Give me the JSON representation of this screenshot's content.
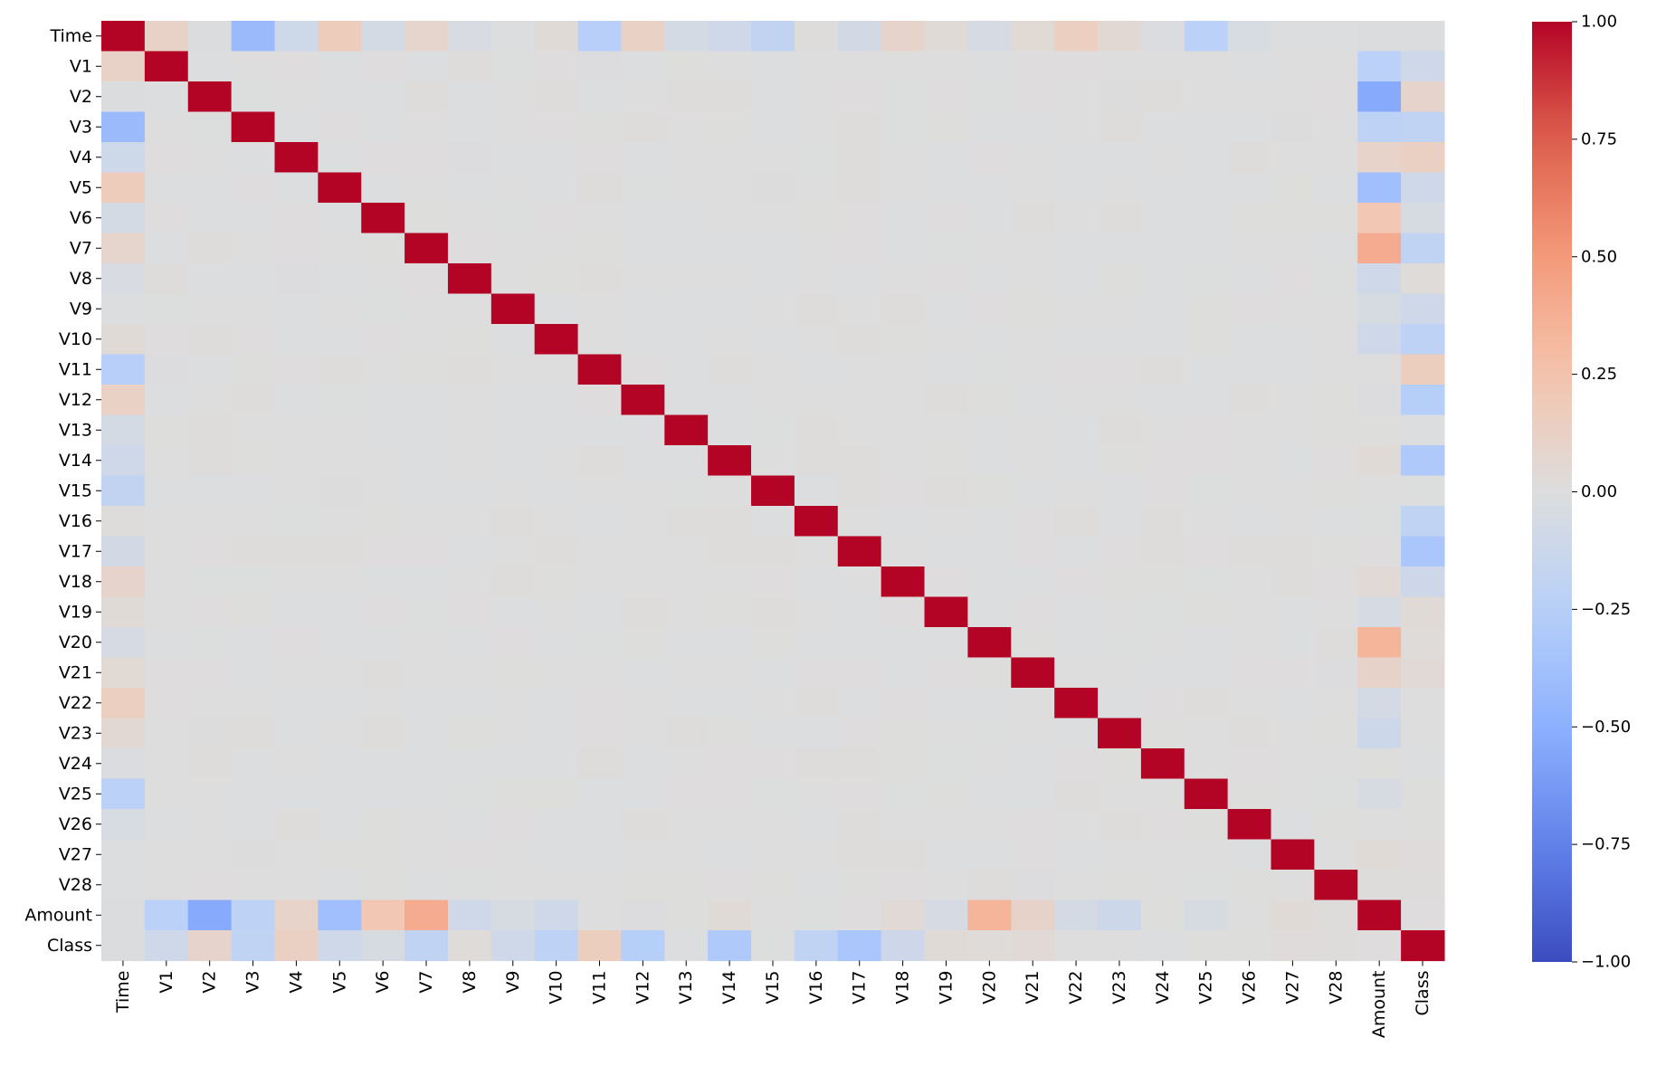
{
  "chart_data": {
    "type": "heatmap",
    "title": "",
    "xlabel": "",
    "ylabel": "",
    "colormap": "coolwarm",
    "vmin": -1,
    "vmax": 1,
    "labels": [
      "Time",
      "V1",
      "V2",
      "V3",
      "V4",
      "V5",
      "V6",
      "V7",
      "V8",
      "V9",
      "V10",
      "V11",
      "V12",
      "V13",
      "V14",
      "V15",
      "V16",
      "V17",
      "V18",
      "V19",
      "V20",
      "V21",
      "V22",
      "V23",
      "V24",
      "V25",
      "V26",
      "V27",
      "V28",
      "Amount",
      "Class"
    ],
    "time_correlations": [
      1,
      0.117,
      -0.011,
      -0.42,
      -0.105,
      0.173,
      -0.063,
      0.085,
      -0.037,
      -0.009,
      0.031,
      -0.248,
      0.124,
      -0.066,
      -0.099,
      -0.183,
      0.012,
      -0.073,
      0.09,
      0.029,
      -0.051,
      0.045,
      0.144,
      0.051,
      -0.016,
      -0.233,
      -0.041,
      -0.005,
      -0.009,
      -0.011,
      -0.012
    ],
    "amount_correlations": [
      -0.011,
      -0.228,
      -0.531,
      -0.211,
      0.099,
      -0.386,
      0.216,
      0.397,
      -0.103,
      -0.044,
      -0.102,
      0.0,
      -0.01,
      0.005,
      0.034,
      -0.003,
      -0.004,
      0.007,
      0.036,
      -0.056,
      0.34,
      0.106,
      -0.065,
      -0.113,
      0.005,
      -0.048,
      -0.003,
      0.029,
      0.01,
      1,
      0.006
    ],
    "class_correlations": [
      -0.012,
      -0.101,
      0.091,
      -0.193,
      0.133,
      -0.095,
      -0.044,
      -0.187,
      0.02,
      -0.098,
      -0.217,
      0.155,
      -0.261,
      -0.005,
      -0.303,
      -0.004,
      -0.197,
      -0.326,
      -0.111,
      0.035,
      0.02,
      0.04,
      0.001,
      -0.003,
      -0.007,
      0.003,
      0.004,
      0.018,
      0.01,
      0.006,
      1
    ],
    "colorbar_ticks": [
      "1.00",
      "0.75",
      "0.50",
      "0.25",
      "0.00",
      "−0.25",
      "−0.50",
      "−0.75",
      "−1.00"
    ],
    "colorbar_tick_values": [
      1,
      0.75,
      0.5,
      0.25,
      0,
      -0.25,
      -0.5,
      -0.75,
      -1
    ],
    "grid": false,
    "legend": "colorbar-right"
  }
}
